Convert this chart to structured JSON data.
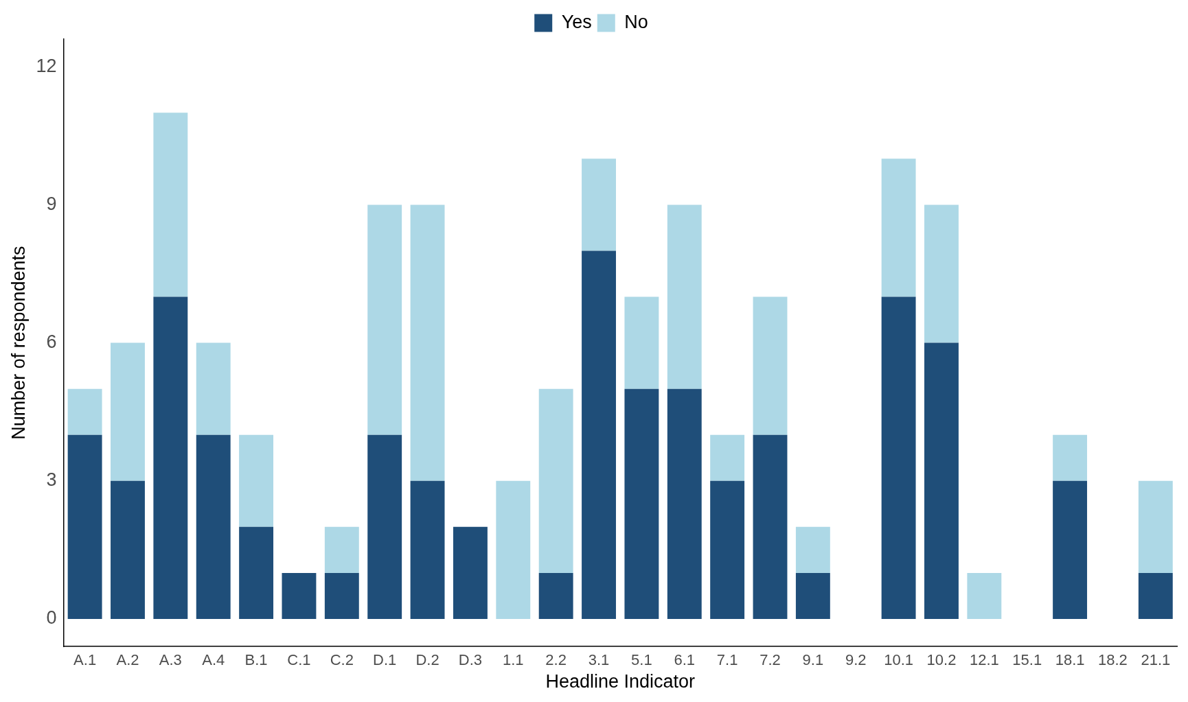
{
  "chart_data": {
    "type": "bar",
    "stacked": true,
    "xlabel": "Headline Indicator",
    "ylabel": "Number of respondents",
    "categories": [
      "A.1",
      "A.2",
      "A.3",
      "A.4",
      "B.1",
      "C.1",
      "C.2",
      "D.1",
      "D.2",
      "D.3",
      "1.1",
      "2.2",
      "3.1",
      "5.1",
      "6.1",
      "7.1",
      "7.2",
      "9.1",
      "9.2",
      "10.1",
      "10.2",
      "12.1",
      "15.1",
      "18.1",
      "18.2",
      "21.1"
    ],
    "series": [
      {
        "name": "Yes",
        "color": "#1f4e79",
        "values": [
          4,
          3,
          7,
          4,
          2,
          1,
          1,
          4,
          3,
          2,
          0,
          1,
          8,
          5,
          5,
          3,
          4,
          1,
          0,
          7,
          6,
          0,
          0,
          3,
          0,
          1
        ]
      },
      {
        "name": "No",
        "color": "#add8e6",
        "values": [
          1,
          3,
          4,
          2,
          2,
          0,
          1,
          5,
          6,
          0,
          3,
          4,
          2,
          2,
          4,
          1,
          3,
          1,
          0,
          3,
          3,
          1,
          0,
          1,
          0,
          2
        ]
      }
    ],
    "ylim": [
      -0.6,
      12.6
    ],
    "yticks": [
      0,
      3,
      6,
      9,
      12
    ],
    "grid": false,
    "legend": "top"
  }
}
